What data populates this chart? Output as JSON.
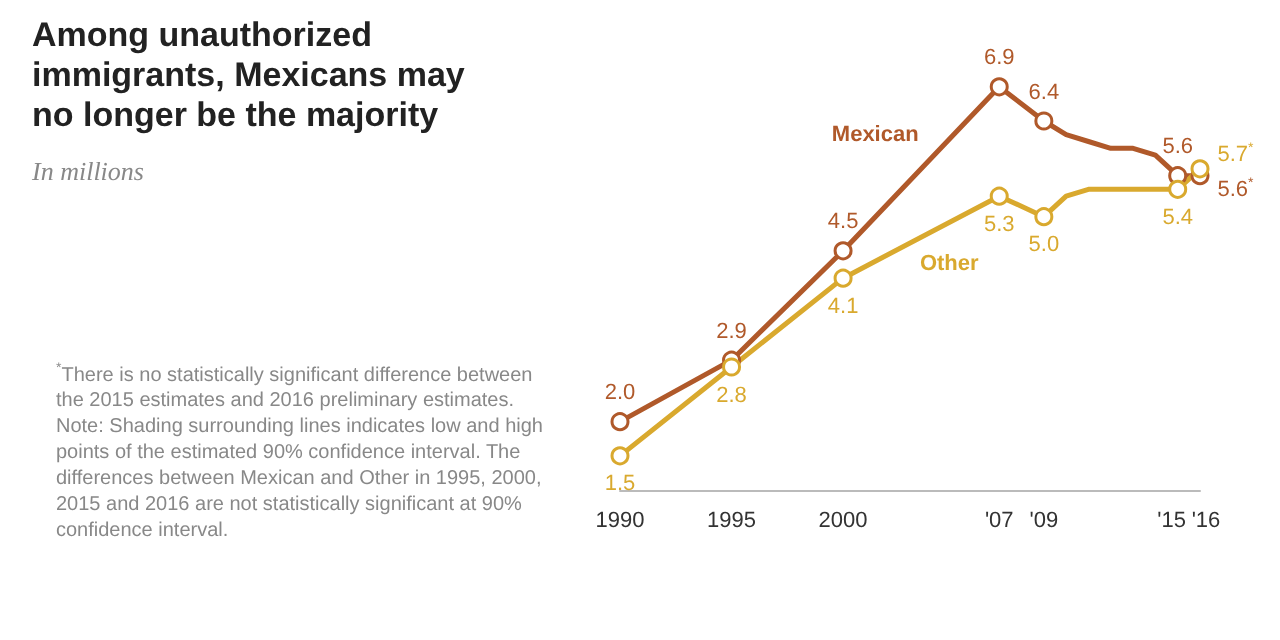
{
  "chart_data": {
    "type": "line",
    "title": "Among unauthorized immigrants, Mexicans may no longer be the majority",
    "subtitle": "In millions",
    "annotations": [
      "$^{*}$There is no statistically significant difference between the 2015 estimates and 2016 preliminary estimates.",
      "Note: Shading surrounding lines indicates low and high points of the estimated 90% confidence interval. The differences between Mexican and Other in 1995, 2000, 2015 and 2016 are not statistically significant at 90% confidence interval."
    ],
    "xlim": [
      1990,
      2016
    ],
    "xticks": [
      1990,
      1995,
      2000,
      {
        "value": 2007,
        "label": "'07"
      },
      {
        "value": 2009,
        "label": "'09"
      },
      {
        "value": 2015,
        "label": "'15"
      },
      {
        "value": 2016,
        "label": "'16"
      }
    ],
    "tick_labels": "x",
    "grid": false,
    "legend": false,
    "marker": "circle",
    "line_style": "solid",
    "series": [
      {
        "name": "Mexican",
        "color": "#b0592a",
        "x": [
          1990,
          1995,
          2000,
          2007,
          2009,
          2010,
          2011,
          2012,
          2013,
          2014,
          2015,
          2016
        ],
        "values": [
          2.0,
          2.9,
          4.5,
          6.9,
          6.4,
          6.2,
          6.1,
          6.0,
          6.0,
          5.9,
          5.6,
          5.6
        ],
        "value_labels": [
          "2.0",
          "2.9",
          "4.5",
          "6.9",
          "6.4",
          null,
          null,
          null,
          null,
          null,
          "5.6",
          "5.6$^{*}$"
        ]
      },
      {
        "name": "Other",
        "color": "#d9a92e",
        "x": [
          1990,
          1995,
          2000,
          2007,
          2009,
          2010,
          2011,
          2012,
          2013,
          2014,
          2015,
          2016
        ],
        "values": [
          1.5,
          2.8,
          4.1,
          5.3,
          5.0,
          5.3,
          5.4,
          5.4,
          5.4,
          5.4,
          5.4,
          5.7
        ],
        "value_labels": [
          "1.5",
          "2.8",
          "4.1",
          "5.3",
          "5.0",
          null,
          null,
          null,
          null,
          null,
          "5.4",
          "5.7$^{*}$"
        ]
      }
    ]
  }
}
